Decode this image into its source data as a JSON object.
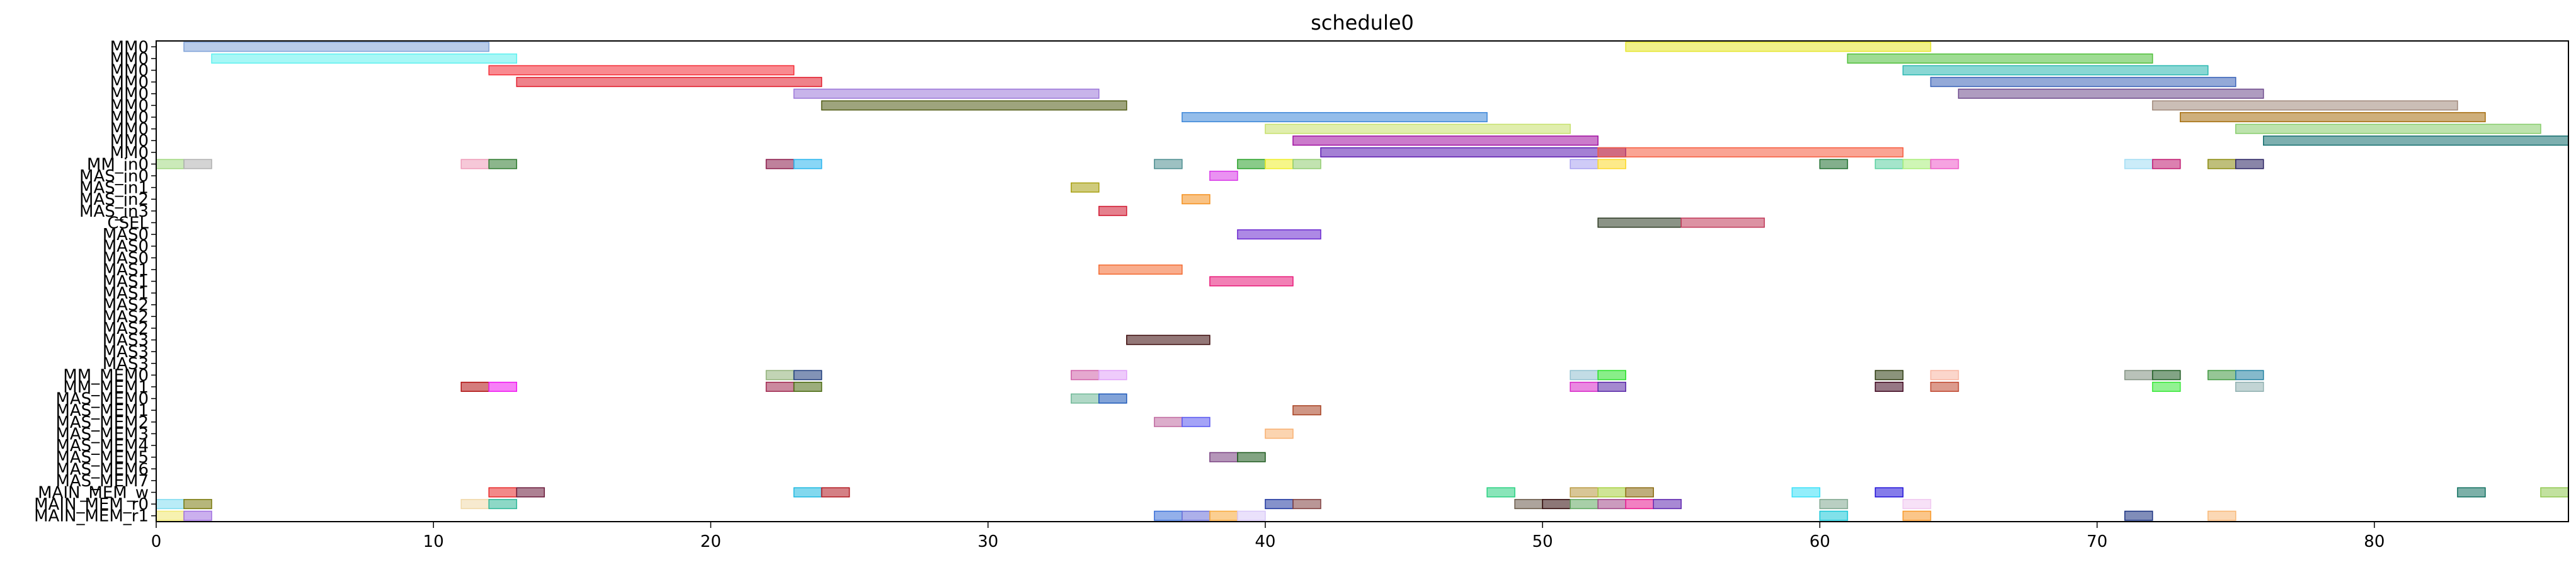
{
  "chart_data": {
    "type": "gantt",
    "title": "schedule0",
    "xlim": [
      0,
      87
    ],
    "x_ticks": [
      0,
      10,
      20,
      30,
      40,
      50,
      60,
      70,
      80
    ],
    "rows": [
      "MM0",
      "MM0",
      "MM0",
      "MM0",
      "MM0",
      "MM0",
      "MM0",
      "MM0",
      "MM0",
      "MM0",
      "MM_in0",
      "MAS_in0",
      "MAS_in1",
      "MAS_in2",
      "MAS_in3",
      "CSEL",
      "MAS0",
      "MAS0",
      "MAS0",
      "MAS1",
      "MAS1",
      "MAS1",
      "MAS2",
      "MAS2",
      "MAS2",
      "MAS3",
      "MAS3",
      "MAS3",
      "MM_MEM0",
      "MM_MEM1",
      "MAS_MEM0",
      "MAS_MEM1",
      "MAS_MEM2",
      "MAS_MEM3",
      "MAS_MEM4",
      "MAS_MEM5",
      "MAS_MEM6",
      "MAS_MEM7",
      "MAIN_MEM_w",
      "MAIN_MEM_r0",
      "MAIN_MEM_r1"
    ],
    "bars": [
      {
        "row": 0,
        "start": 1,
        "end": 12,
        "color": "#7fa2d8"
      },
      {
        "row": 0,
        "start": 53,
        "end": 64,
        "color": "#e6e62a"
      },
      {
        "row": 1,
        "start": 2,
        "end": 13,
        "color": "#5ef0ef"
      },
      {
        "row": 1,
        "start": 61,
        "end": 72,
        "color": "#4fbf3a"
      },
      {
        "row": 2,
        "start": 12,
        "end": 23,
        "color": "#f42a34"
      },
      {
        "row": 2,
        "start": 63,
        "end": 74,
        "color": "#28b7b0"
      },
      {
        "row": 3,
        "start": 13,
        "end": 24,
        "color": "#e11c2c"
      },
      {
        "row": 3,
        "start": 64,
        "end": 75,
        "color": "#3a63b8"
      },
      {
        "row": 4,
        "start": 23,
        "end": 34,
        "color": "#9b76d8"
      },
      {
        "row": 4,
        "start": 65,
        "end": 76,
        "color": "#6e4a8c"
      },
      {
        "row": 5,
        "start": 24,
        "end": 35,
        "color": "#4f5a12"
      },
      {
        "row": 5,
        "start": 72,
        "end": 83,
        "color": "#a0887a"
      },
      {
        "row": 6,
        "start": 37,
        "end": 48,
        "color": "#3c86d8"
      },
      {
        "row": 6,
        "start": 73,
        "end": 84,
        "color": "#a66e0e"
      },
      {
        "row": 7,
        "start": 40,
        "end": 51,
        "color": "#c6e06a"
      },
      {
        "row": 7,
        "start": 75,
        "end": 86,
        "color": "#86cc6a"
      },
      {
        "row": 8,
        "start": 41,
        "end": 52,
        "color": "#a00ea0"
      },
      {
        "row": 8,
        "start": 76,
        "end": 87,
        "color": "#136e6e"
      },
      {
        "row": 9,
        "start": 42,
        "end": 53,
        "color": "#5a18b0"
      },
      {
        "row": 9,
        "start": 52,
        "end": 63,
        "color": "#f65a3c"
      },
      {
        "row": 10,
        "start": 0,
        "end": 1,
        "color": "#a0d880"
      },
      {
        "row": 10,
        "start": 1,
        "end": 2,
        "color": "#b0b0b0"
      },
      {
        "row": 10,
        "start": 11,
        "end": 12,
        "color": "#ee9ab8"
      },
      {
        "row": 10,
        "start": 12,
        "end": 13,
        "color": "#2e7a2e"
      },
      {
        "row": 10,
        "start": 22,
        "end": 23,
        "color": "#8a1a4a"
      },
      {
        "row": 10,
        "start": 23,
        "end": 24,
        "color": "#28b4ee"
      },
      {
        "row": 10,
        "start": 36,
        "end": 37,
        "color": "#4c8e90"
      },
      {
        "row": 10,
        "start": 39,
        "end": 40,
        "color": "#28a028"
      },
      {
        "row": 10,
        "start": 40,
        "end": 41,
        "color": "#eeee28"
      },
      {
        "row": 10,
        "start": 41,
        "end": 42,
        "color": "#90cc70"
      },
      {
        "row": 10,
        "start": 51,
        "end": 52,
        "color": "#a8a0f0"
      },
      {
        "row": 10,
        "start": 52,
        "end": 53,
        "color": "#fcd828"
      },
      {
        "row": 10,
        "start": 60,
        "end": 61,
        "color": "#1e6e2e"
      },
      {
        "row": 10,
        "start": 62,
        "end": 63,
        "color": "#5ad0a0"
      },
      {
        "row": 10,
        "start": 63,
        "end": 64,
        "color": "#a8ee78"
      },
      {
        "row": 10,
        "start": 64,
        "end": 65,
        "color": "#ee58c8"
      },
      {
        "row": 10,
        "start": 71,
        "end": 72,
        "color": "#a0dcf4"
      },
      {
        "row": 10,
        "start": 72,
        "end": 73,
        "color": "#c01870"
      },
      {
        "row": 10,
        "start": 74,
        "end": 75,
        "color": "#8a8a0e"
      },
      {
        "row": 10,
        "start": 75,
        "end": 76,
        "color": "#282060"
      },
      {
        "row": 11,
        "start": 38,
        "end": 39,
        "color": "#d838e8"
      },
      {
        "row": 12,
        "start": 33,
        "end": 34,
        "color": "#a8a010"
      },
      {
        "row": 13,
        "start": 37,
        "end": 38,
        "color": "#f4901e"
      },
      {
        "row": 14,
        "start": 34,
        "end": 35,
        "color": "#d01830"
      },
      {
        "row": 15,
        "start": 52,
        "end": 55,
        "color": "#2c3a22"
      },
      {
        "row": 15,
        "start": 55,
        "end": 58,
        "color": "#c03858"
      },
      {
        "row": 16,
        "start": 39,
        "end": 42,
        "color": "#6a28d0"
      },
      {
        "row": 19,
        "start": 34,
        "end": 37,
        "color": "#f46a30"
      },
      {
        "row": 20,
        "start": 38,
        "end": 41,
        "color": "#e81878"
      },
      {
        "row": 25,
        "start": 35,
        "end": 38,
        "color": "#3a0808"
      },
      {
        "row": 28,
        "start": 22,
        "end": 23,
        "color": "#90b078"
      },
      {
        "row": 28,
        "start": 23,
        "end": 24,
        "color": "#1c3a7a"
      },
      {
        "row": 28,
        "start": 33,
        "end": 34,
        "color": "#d060a8"
      },
      {
        "row": 28,
        "start": 34,
        "end": 35,
        "color": "#e0a0f8"
      },
      {
        "row": 28,
        "start": 51,
        "end": 52,
        "color": "#90c0d0"
      },
      {
        "row": 28,
        "start": 52,
        "end": 53,
        "color": "#28e028"
      },
      {
        "row": 28,
        "start": 62,
        "end": 63,
        "color": "#2c3a0e"
      },
      {
        "row": 28,
        "start": 64,
        "end": 65,
        "color": "#f8b4a0"
      },
      {
        "row": 28,
        "start": 71,
        "end": 72,
        "color": "#809080"
      },
      {
        "row": 28,
        "start": 72,
        "end": 73,
        "color": "#1c5a20"
      },
      {
        "row": 28,
        "start": 74,
        "end": 75,
        "color": "#409840"
      },
      {
        "row": 28,
        "start": 75,
        "end": 76,
        "color": "#2080a0"
      },
      {
        "row": 29,
        "start": 11,
        "end": 12,
        "color": "#b01010"
      },
      {
        "row": 29,
        "start": 12,
        "end": 13,
        "color": "#f018f0"
      },
      {
        "row": 29,
        "start": 22,
        "end": 23,
        "color": "#a02850"
      },
      {
        "row": 29,
        "start": 23,
        "end": 24,
        "color": "#4a6a10"
      },
      {
        "row": 29,
        "start": 51,
        "end": 52,
        "color": "#d828c8"
      },
      {
        "row": 29,
        "start": 52,
        "end": 53,
        "color": "#5a28a8"
      },
      {
        "row": 29,
        "start": 62,
        "end": 63,
        "color": "#400820"
      },
      {
        "row": 29,
        "start": 64,
        "end": 65,
        "color": "#c04830"
      },
      {
        "row": 29,
        "start": 72,
        "end": 73,
        "color": "#38e838"
      },
      {
        "row": 29,
        "start": 75,
        "end": 76,
        "color": "#90b0b0"
      },
      {
        "row": 30,
        "start": 33,
        "end": 34,
        "color": "#70b898"
      },
      {
        "row": 30,
        "start": 34,
        "end": 35,
        "color": "#1c58b8"
      },
      {
        "row": 31,
        "start": 41,
        "end": 42,
        "color": "#a84020"
      },
      {
        "row": 32,
        "start": 36,
        "end": 37,
        "color": "#c06aa0"
      },
      {
        "row": 32,
        "start": 37,
        "end": 38,
        "color": "#5a58f0"
      },
      {
        "row": 33,
        "start": 40,
        "end": 41,
        "color": "#f8b070"
      },
      {
        "row": 35,
        "start": 38,
        "end": 39,
        "color": "#784080"
      },
      {
        "row": 35,
        "start": 39,
        "end": 40,
        "color": "#1c5a1c"
      },
      {
        "row": 38,
        "start": 12,
        "end": 13,
        "color": "#e82828"
      },
      {
        "row": 38,
        "start": 13,
        "end": 14,
        "color": "#6a1a3a"
      },
      {
        "row": 38,
        "start": 23,
        "end": 24,
        "color": "#1cb8e0"
      },
      {
        "row": 38,
        "start": 24,
        "end": 25,
        "color": "#b01820"
      },
      {
        "row": 38,
        "start": 48,
        "end": 49,
        "color": "#28d080"
      },
      {
        "row": 38,
        "start": 51,
        "end": 52,
        "color": "#b89840"
      },
      {
        "row": 38,
        "start": 52,
        "end": 53,
        "color": "#a8d040"
      },
      {
        "row": 38,
        "start": 53,
        "end": 54,
        "color": "#8a6a10"
      },
      {
        "row": 38,
        "start": 59,
        "end": 60,
        "color": "#38e0f8"
      },
      {
        "row": 38,
        "start": 62,
        "end": 63,
        "color": "#2010d8"
      },
      {
        "row": 38,
        "start": 83,
        "end": 84,
        "color": "#107060"
      },
      {
        "row": 38,
        "start": 86,
        "end": 87,
        "color": "#90c850"
      },
      {
        "row": 39,
        "start": 0,
        "end": 1,
        "color": "#80dcf0"
      },
      {
        "row": 39,
        "start": 1,
        "end": 2,
        "color": "#7a7a0e"
      },
      {
        "row": 39,
        "start": 11,
        "end": 12,
        "color": "#f0d8a8"
      },
      {
        "row": 39,
        "start": 12,
        "end": 13,
        "color": "#30b898"
      },
      {
        "row": 39,
        "start": 40,
        "end": 41,
        "color": "#2038a0"
      },
      {
        "row": 39,
        "start": 41,
        "end": 42,
        "color": "#804040"
      },
      {
        "row": 39,
        "start": 49,
        "end": 50,
        "color": "#6a5a4a"
      },
      {
        "row": 39,
        "start": 50,
        "end": 51,
        "color": "#300808"
      },
      {
        "row": 39,
        "start": 51,
        "end": 52,
        "color": "#60a860"
      },
      {
        "row": 39,
        "start": 52,
        "end": 53,
        "color": "#a04888"
      },
      {
        "row": 39,
        "start": 53,
        "end": 54,
        "color": "#e81890"
      },
      {
        "row": 39,
        "start": 54,
        "end": 55,
        "color": "#6028b0"
      },
      {
        "row": 39,
        "start": 60,
        "end": 61,
        "color": "#80a890"
      },
      {
        "row": 39,
        "start": 63,
        "end": 64,
        "color": "#f0c8f0"
      },
      {
        "row": 40,
        "start": 0,
        "end": 1,
        "color": "#f0e870"
      },
      {
        "row": 40,
        "start": 1,
        "end": 2,
        "color": "#a070e0"
      },
      {
        "row": 40,
        "start": 36,
        "end": 37,
        "color": "#3a70d8"
      },
      {
        "row": 40,
        "start": 37,
        "end": 38,
        "color": "#6a70d8"
      },
      {
        "row": 40,
        "start": 38,
        "end": 39,
        "color": "#f8a838"
      },
      {
        "row": 40,
        "start": 39,
        "end": 40,
        "color": "#d8c8f8"
      },
      {
        "row": 40,
        "start": 60,
        "end": 61,
        "color": "#18c8d8"
      },
      {
        "row": 40,
        "start": 63,
        "end": 64,
        "color": "#f89828"
      },
      {
        "row": 40,
        "start": 71,
        "end": 72,
        "color": "#183080"
      },
      {
        "row": 40,
        "start": 74,
        "end": 75,
        "color": "#f8b878"
      }
    ]
  }
}
